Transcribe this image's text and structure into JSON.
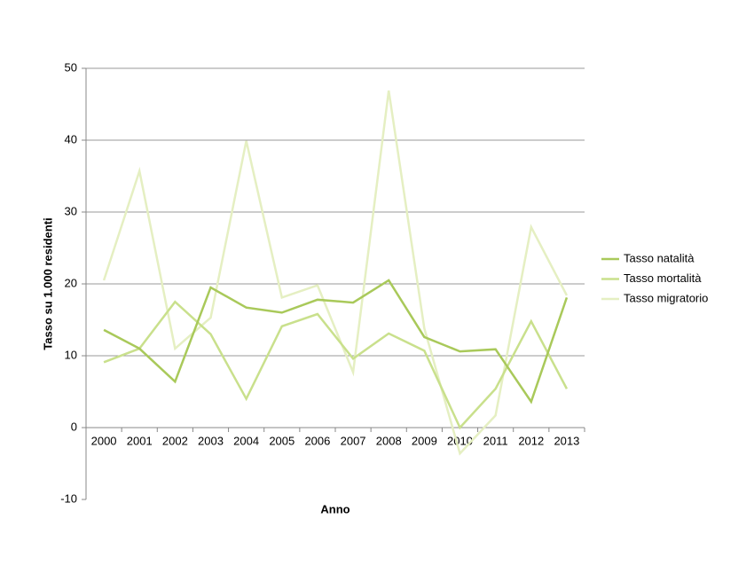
{
  "chart_data": {
    "type": "line",
    "x_label": "Anno",
    "y_label": "Tasso su 1.000 residenti",
    "categories": [
      "2000",
      "2001",
      "2002",
      "2003",
      "2004",
      "2005",
      "2006",
      "2007",
      "2008",
      "2009",
      "2010",
      "2011",
      "2012",
      "2013"
    ],
    "series": [
      {
        "name": "Tasso natalità",
        "color": "#a9c95a",
        "values": [
          13.6,
          11.0,
          6.4,
          19.5,
          16.7,
          16.0,
          17.8,
          17.4,
          20.5,
          12.6,
          10.6,
          10.9,
          3.6,
          18.1
        ]
      },
      {
        "name": "Tasso mortalità",
        "color": "#c9e08c",
        "values": [
          9.1,
          11.0,
          17.5,
          13.0,
          4.0,
          14.1,
          15.8,
          9.6,
          13.1,
          10.7,
          0,
          5.4,
          14.8,
          5.4
        ]
      },
      {
        "name": "Tasso migratorio",
        "color": "#e5efc2",
        "values": [
          20.5,
          35.7,
          11.0,
          15.3,
          39.9,
          18.1,
          19.8,
          7.7,
          46.9,
          13.8,
          -3.6,
          1.7,
          27.9,
          18.4
        ]
      }
    ],
    "ylim": [
      -10,
      50
    ],
    "yticks": [
      -10,
      0,
      10,
      20,
      30,
      40,
      50
    ],
    "grid": true,
    "legend": "right"
  }
}
